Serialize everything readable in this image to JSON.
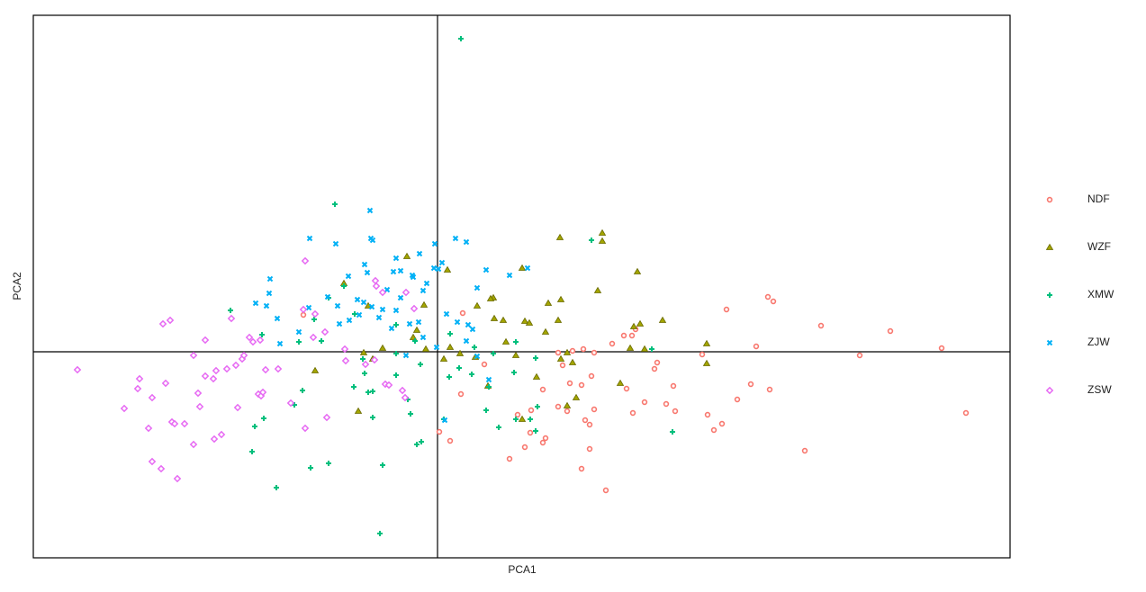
{
  "chart_data": {
    "type": "scatter",
    "x_label": "PCA1",
    "y_label": "PCA2",
    "xlim": [
      -44.9,
      63.6
    ],
    "ylim": [
      -22.9,
      37.4
    ],
    "zero_lines": true,
    "legend": "right",
    "series": [
      {
        "name": "NDF",
        "color": "#F8766D",
        "marker": "circle",
        "x": [
          36.7,
          37.3,
          32.1,
          42.6,
          50.3,
          56,
          46.9,
          35.4,
          29.4,
          24.4,
          24.1,
          19.4,
          20.7,
          21.6,
          22,
          17.4,
          16.2,
          15,
          13.4,
          16,
          14.7,
          17.1,
          21,
          26.2,
          25.4,
          26.4,
          23,
          21.7,
          17.4,
          16.4,
          16.9,
          14.4,
          13.4,
          11.7,
          10.4,
          10.3,
          11.7,
          9.7,
          8,
          12,
          16.9,
          16,
          18.7,
          30,
          31.6,
          30.7,
          33.3,
          34.8,
          36.9,
          40.8,
          58.7,
          5.2,
          2.6,
          0.2,
          1.4,
          2.8,
          -14.9,
          8.9,
          13.9
        ],
        "values": [
          6.1,
          5.6,
          4.7,
          2.9,
          2.3,
          0.4,
          -0.4,
          0.6,
          -0.3,
          -1.2,
          -1.9,
          0.9,
          1.8,
          1.8,
          2.5,
          -0.1,
          0.3,
          0.1,
          -0.1,
          -3.7,
          -3.5,
          -2.7,
          -4.1,
          -3.8,
          -5.8,
          -6.6,
          -5.6,
          -6.8,
          -6.4,
          -7.6,
          -8.1,
          -6.6,
          -6.1,
          -4.2,
          -6.5,
          -9,
          -10.1,
          -10.6,
          -11.9,
          -9.6,
          -10.8,
          -13,
          -15.4,
          -7,
          -8,
          -8.7,
          -5.3,
          -3.6,
          -4.2,
          -11,
          -6.8,
          -1.4,
          -4.7,
          -8.9,
          -9.9,
          4.3,
          4.1,
          -7,
          -1.5
        ]
      },
      {
        "name": "WZF",
        "color": "#A3A500",
        "marker": "triangle",
        "x": [
          18.3,
          18.3,
          13.6,
          22.2,
          17.8,
          13.7,
          12.3,
          9.4,
          6.2,
          5.9,
          4.4,
          6.3,
          7.3,
          9.7,
          10.2,
          13.4,
          12,
          21.8,
          22.5,
          25,
          29.9,
          21.4,
          23,
          29.9,
          15,
          13.7,
          11,
          20.3,
          15.4,
          14.4,
          9.4,
          5.6,
          4.2,
          2.5,
          1.4,
          0.7,
          -1.3,
          -2.7,
          -2.3,
          -1.5,
          1.1,
          -3.4,
          -10.4,
          -7.7,
          -13.6,
          -8.8,
          -7.2,
          -6.1,
          -8.2,
          8.7,
          7.6,
          14.4
        ],
        "values": [
          13.2,
          12.3,
          12.7,
          8.9,
          6.8,
          5.8,
          5.4,
          9.3,
          6,
          5.9,
          5.1,
          3.7,
          3.5,
          3.4,
          3.2,
          3.5,
          2.2,
          2.8,
          3.1,
          3.5,
          0.9,
          0.4,
          0.3,
          -1.3,
          -1.2,
          -0.8,
          -2.8,
          -3.5,
          -5.1,
          -6,
          -7.5,
          -3.8,
          -0.6,
          -0.2,
          0.5,
          -0.8,
          0.3,
          1.6,
          2.4,
          5.2,
          9.1,
          10.6,
          7.6,
          5.1,
          -2.1,
          -6.6,
          -0.8,
          0.4,
          -0.1,
          -0.4,
          1.1,
          -0.1
        ]
      },
      {
        "name": "XMW",
        "color": "#00BF7D",
        "marker": "plus",
        "x": [
          2.6,
          -11.4,
          17.1,
          -23,
          -19.5,
          -15.4,
          -12.9,
          -13.7,
          -12.1,
          -10.4,
          -9.2,
          -4.6,
          -2.5,
          1.4,
          4.1,
          6.2,
          8.7,
          23.8,
          26.1,
          10.9,
          8.5,
          11.1,
          10.3,
          10.9,
          8.7,
          6.8,
          5.4,
          5.7,
          3.8,
          2.4,
          1.3,
          0.7,
          -1.8,
          -2.3,
          -3,
          -3.3,
          -4.6,
          -7.2,
          -7.7,
          -9.3,
          -8.1,
          -8.3,
          -7.2,
          -15,
          -15.9,
          -19.3,
          -20.3,
          -20.6,
          -17.9,
          -14.1,
          -12.1,
          -6.1,
          -6.4,
          -4.6,
          -1.9
        ],
        "values": [
          34.8,
          16.4,
          12.4,
          4.6,
          1.9,
          1.1,
          1.2,
          3.6,
          6,
          7.3,
          4.2,
          3,
          1.2,
          2,
          0.5,
          -0.2,
          1.1,
          0.3,
          -8.9,
          -0.7,
          -2.3,
          -6.1,
          -7.5,
          -8.8,
          -7.5,
          -8.4,
          -6.5,
          -3.9,
          -2.5,
          -1.8,
          -2.8,
          -7.5,
          -10,
          -10.3,
          -6.9,
          -5.3,
          -2.6,
          -4.4,
          -4.5,
          -3.9,
          -2.4,
          -0.8,
          -7.3,
          -4.3,
          -5.9,
          -7.4,
          -8.3,
          -11.1,
          -15.1,
          -12.9,
          -12.4,
          -12.6,
          -20.2,
          -0.2,
          -1.4
        ]
      },
      {
        "name": "ZJW",
        "color": "#00B0F6",
        "marker": "cross",
        "x": [
          -7.5,
          -14.2,
          -11.3,
          -7.4,
          -7.2,
          -0.3,
          2,
          3.2,
          -4.6,
          -2,
          0.5,
          -0.4,
          -2.8,
          -4.1,
          -4.9,
          -8.1,
          -7.8,
          -9.9,
          -18.6,
          -18.7,
          -20.2,
          -19,
          -17.8,
          -17.5,
          -15.4,
          -14.3,
          -12.2,
          -11.1,
          -8.9,
          -8.2,
          -7.3,
          -5.6,
          -6.1,
          -4.1,
          -1.6,
          -1.2,
          -2.7,
          0.1,
          5.4,
          8,
          10,
          4.4,
          1,
          2.2,
          3.4,
          3.9,
          3.2,
          -4.6,
          -6.5,
          -8.7,
          -9.8,
          -10.9,
          -5.1,
          -3.1,
          -2.1,
          -1.6,
          -3.5,
          -0.1,
          5.7,
          0.8,
          4.4
        ],
        "values": [
          15.7,
          12.6,
          12,
          12.6,
          12.4,
          12,
          12.6,
          12.2,
          10.4,
          10.9,
          9.9,
          9.3,
          8.5,
          9,
          8.9,
          9.7,
          8.8,
          8.4,
          8.1,
          6.5,
          5.4,
          5.1,
          3.7,
          0.9,
          2.2,
          4.9,
          6.1,
          5.1,
          5.8,
          5.5,
          5,
          6.9,
          4.7,
          6,
          6.8,
          7.6,
          8.3,
          9.2,
          9.1,
          8.5,
          9.3,
          7.1,
          4.2,
          3.3,
          3,
          2.5,
          1.2,
          4.6,
          3.8,
          4.1,
          3.5,
          3.1,
          2.6,
          3.1,
          3.3,
          1.6,
          -0.4,
          0.5,
          -3.1,
          -7.6,
          -0.5
        ]
      },
      {
        "name": "ZSW",
        "color": "#E76BF3",
        "marker": "diamond",
        "x": [
          -40,
          -30.5,
          -29.7,
          -25.8,
          -27.1,
          -33.1,
          -33.3,
          -31.7,
          -30.2,
          -34.8,
          -32.1,
          -29.5,
          -29.2,
          -28.1,
          -27.1,
          -31.7,
          -30.7,
          -28.9,
          -24.8,
          -24,
          -26.6,
          -26.4,
          -25.8,
          -24.9,
          -24.6,
          -23.4,
          -22.4,
          -21.7,
          -21.5,
          -20.9,
          -22.9,
          -19.7,
          -19.1,
          -17.7,
          -22.2,
          -19.9,
          -19.6,
          -19.4,
          -16.3,
          -14.7,
          -12.3,
          -13.8,
          -12.5,
          -10.3,
          -10.2,
          -14.7,
          -14.9,
          -13.6,
          -6.9,
          -6.8,
          -6.1,
          -3.5,
          -2.6,
          -3.9,
          -3.6,
          -5.8,
          -5.4,
          -8,
          -7,
          -20.5
        ],
        "values": [
          -2,
          3.1,
          3.5,
          1.3,
          -0.4,
          -3,
          -4.1,
          -5.1,
          -3.5,
          -6.3,
          -8.5,
          -7.8,
          -8,
          -8,
          -10.3,
          -12.2,
          -13,
          -14.1,
          -9.7,
          -9.2,
          -4.6,
          -6.1,
          -2.7,
          -3,
          -2.1,
          -1.9,
          -1.5,
          -0.8,
          -0.4,
          1.6,
          3.7,
          1.3,
          -2,
          -1.9,
          -6.2,
          -4.7,
          -4.9,
          -4.5,
          -5.7,
          -8.5,
          -7.3,
          1.6,
          2.2,
          0.3,
          -1,
          10.1,
          4.7,
          4.2,
          7.9,
          7.3,
          6.6,
          6.6,
          4.8,
          -4.3,
          -5.1,
          -3.6,
          -3.7,
          -1.4,
          -0.9,
          1.1
        ]
      }
    ]
  }
}
